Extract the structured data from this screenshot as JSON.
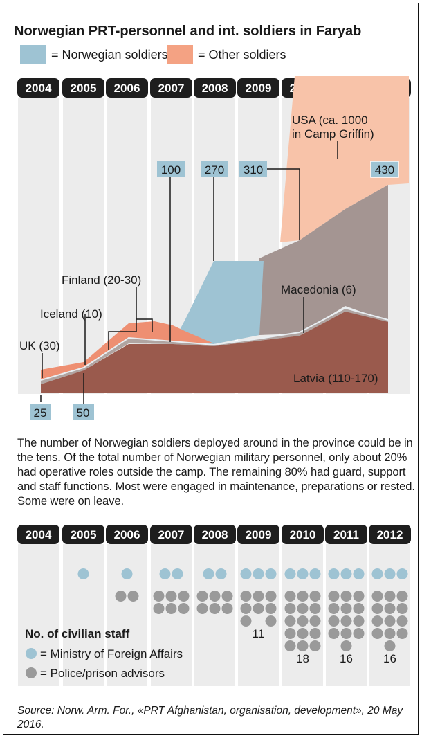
{
  "title": "Norwegian PRT-personnel and int. soldiers in Faryab",
  "legend": {
    "norwegian": "= Norwegian soldiers",
    "other": "= Other soldiers"
  },
  "colors": {
    "norwegian": "#9ec3d3",
    "other": "#f4a283",
    "usa": "#f8c3a9",
    "intl_gray": "#a49592",
    "latvia": "#9a5a4d",
    "year_bg": "#1e1e1e",
    "mfa_dot": "#9ec3d3",
    "police_dot": "#9a9a9a"
  },
  "years": [
    "2004",
    "2005",
    "2006",
    "2007",
    "2008",
    "2009",
    "2010",
    "2011",
    "2012"
  ],
  "chart_data": [
    {
      "type": "area",
      "title": "Norwegian PRT-personnel and int. soldiers in Faryab",
      "x": [
        "2004",
        "2005",
        "2006",
        "2007",
        "2008",
        "2009",
        "2010",
        "2011",
        "2012"
      ],
      "series": [
        {
          "name": "Norwegian soldiers",
          "labelled_values": {
            "2004": 25,
            "2005": 50,
            "2007": 100,
            "2008": 270,
            "2010": 310,
            "2012": 430
          }
        }
      ],
      "annotations": [
        "UK (30)",
        "Iceland (10)",
        "Finland (20-30)",
        "Macedonia (6)",
        "Latvia (110-170)",
        "USA (ca. 1000 in Camp Griffin)"
      ]
    },
    {
      "type": "table",
      "title": "No. of civilian staff",
      "categories": [
        "2004",
        "2005",
        "2006",
        "2007",
        "2008",
        "2009",
        "2010",
        "2011",
        "2012"
      ],
      "series": [
        {
          "name": "Ministry of Foreign Affairs",
          "values": [
            0,
            1,
            1,
            2,
            2,
            3,
            3,
            3,
            3
          ]
        },
        {
          "name": "Police/prison advisors",
          "values": [
            0,
            0,
            2,
            6,
            6,
            8,
            15,
            13,
            13
          ]
        }
      ],
      "labels": {
        "2009": "11",
        "2010": "18",
        "2011": "16",
        "2012": "16"
      }
    }
  ],
  "value_labels": {
    "v2004": "25",
    "v2005": "50",
    "v2007": "100",
    "v2008": "270",
    "v2010": "310",
    "v2012": "430"
  },
  "annotations": {
    "uk": "UK (30)",
    "iceland": "Iceland (10)",
    "finland": "Finland (20-30)",
    "macedonia": "Macedonia (6)",
    "latvia": "Latvia (110-170)",
    "usa_line1": "USA (ca. 1000",
    "usa_line2": "in Camp Griffin)"
  },
  "description": "The number of Norwegian soldiers deployed around in the province could be in the tens. Of the total number of Norwegian military personnel, only about 20% had operative roles outside the camp. The remaining 80% had guard, support and staff functions. Most were engaged in maintenance, preparations or rested. Some were on leave.",
  "civilian": {
    "title": "No. of civilian staff",
    "mfa_label": "= Ministry of Foreign Affairs",
    "police_label": "= Police/prison advisors",
    "mfa": [
      0,
      1,
      1,
      2,
      2,
      3,
      3,
      3,
      3
    ],
    "police": [
      0,
      0,
      2,
      6,
      6,
      8,
      15,
      13,
      13
    ],
    "totals": {
      "2009": "11",
      "2010": "18",
      "2011": "16",
      "2012": "16"
    }
  },
  "source": "Source: Norw. Arm. For., «PRT Afghanistan, organisation, development», 20 May 2016."
}
